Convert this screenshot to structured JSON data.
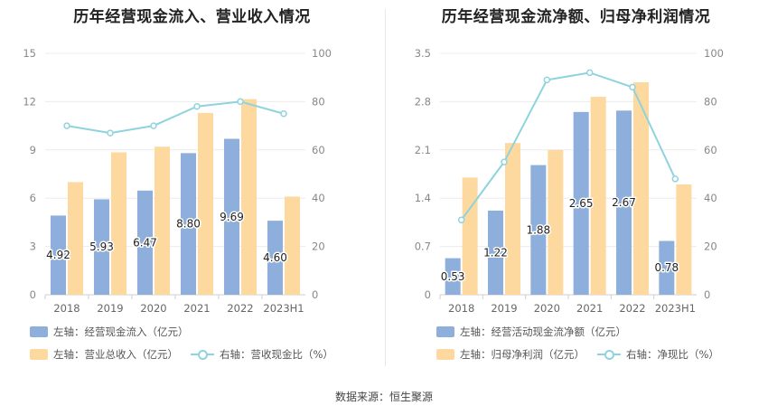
{
  "source_label": "数据来源：恒生聚源",
  "colors": {
    "bar_blue": "#8eaedc",
    "bar_yellow": "#fdd9a0",
    "line": "#8fd3dc",
    "grid": "#ececec",
    "axis_text": "#888888"
  },
  "chart_data": [
    {
      "type": "bar",
      "title": "历年经营现金流入、营业收入情况",
      "categories": [
        "2018",
        "2019",
        "2020",
        "2021",
        "2022",
        "2023H1"
      ],
      "left_axis": {
        "min": 0,
        "max": 15,
        "ticks": [
          "0",
          "3",
          "6",
          "9",
          "12",
          "15"
        ]
      },
      "right_axis": {
        "min": 0,
        "max": 100,
        "ticks": [
          "0",
          "20",
          "40",
          "60",
          "80",
          "100"
        ]
      },
      "series": [
        {
          "name": "左轴：经营现金流入（亿元）",
          "axis": "left",
          "kind": "bar",
          "values": [
            4.92,
            5.93,
            6.47,
            8.8,
            9.69,
            4.6
          ],
          "labels": [
            "4.92",
            "5.93",
            "6.47",
            "8.80",
            "9.69",
            "4.60"
          ]
        },
        {
          "name": "左轴：营业总收入（亿元）",
          "axis": "left",
          "kind": "bar",
          "values": [
            7.0,
            8.85,
            9.2,
            11.3,
            12.15,
            6.1
          ]
        },
        {
          "name": "右轴：营收现金比（%）",
          "axis": "right",
          "kind": "line",
          "values": [
            70,
            67,
            70,
            78,
            80,
            75
          ]
        }
      ]
    },
    {
      "type": "bar",
      "title": "历年经营现金流净额、归母净利润情况",
      "categories": [
        "2018",
        "2019",
        "2020",
        "2021",
        "2022",
        "2023H1"
      ],
      "left_axis": {
        "min": 0,
        "max": 3.5,
        "ticks": [
          "0",
          "0.7",
          "1.4",
          "2.1",
          "2.8",
          "3.5"
        ]
      },
      "right_axis": {
        "min": 0,
        "max": 100,
        "ticks": [
          "0",
          "20",
          "40",
          "60",
          "80",
          "100"
        ]
      },
      "series": [
        {
          "name": "左轴：经营活动现金流净额（亿元）",
          "axis": "left",
          "kind": "bar",
          "values": [
            0.53,
            1.22,
            1.88,
            2.65,
            2.67,
            0.78
          ],
          "labels": [
            "0.53",
            "1.22",
            "1.88",
            "2.65",
            "2.67",
            "0.78"
          ]
        },
        {
          "name": "左轴：归母净利润（亿元）",
          "axis": "left",
          "kind": "bar",
          "values": [
            1.7,
            2.2,
            2.1,
            2.87,
            3.08,
            1.6
          ]
        },
        {
          "name": "右轴：净现比（%）",
          "axis": "right",
          "kind": "line",
          "values": [
            31,
            55,
            89,
            92,
            86,
            48
          ]
        }
      ]
    }
  ]
}
